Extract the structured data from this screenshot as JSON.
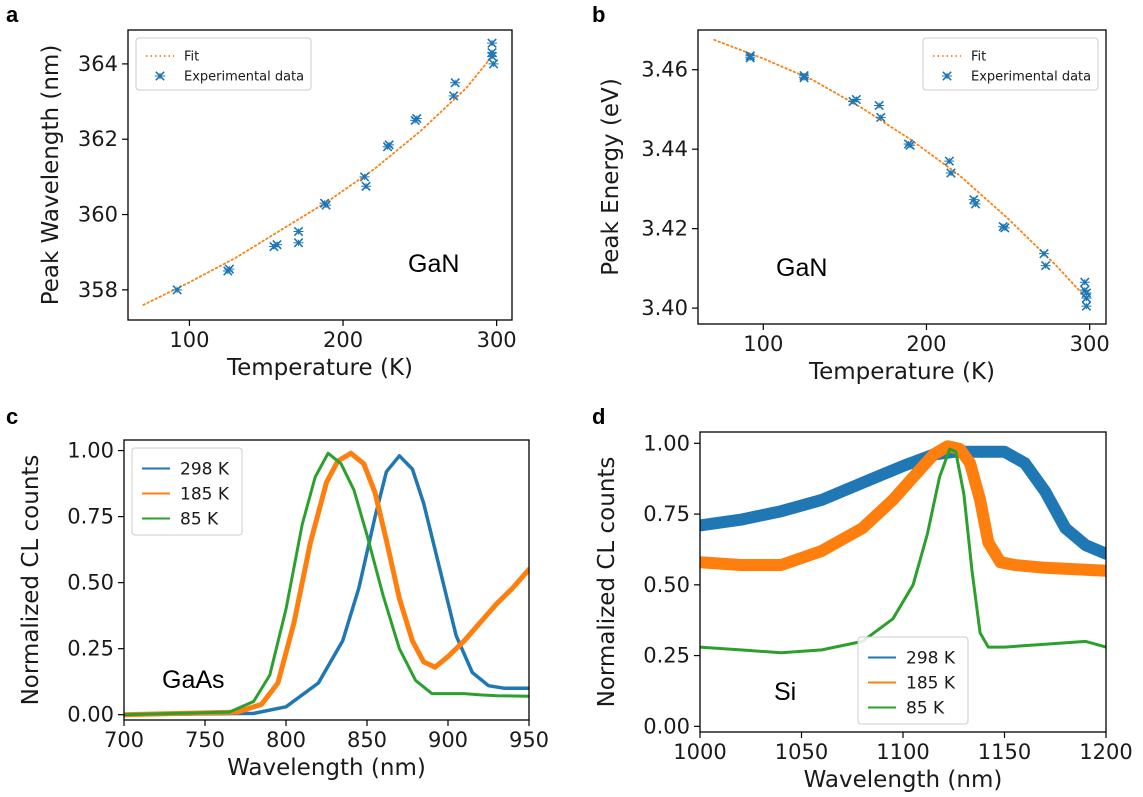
{
  "colors": {
    "blue": "#1f77b4",
    "orange": "#ff7f0e",
    "green": "#2ca02c"
  },
  "chart_data": [
    {
      "panel": "a",
      "type": "scatter",
      "annotation": "GaN",
      "xlabel": "Temperature (K)",
      "ylabel": "Peak Wavelength (nm)",
      "xlim": [
        60,
        310
      ],
      "ylim": [
        357.2,
        364.9
      ],
      "xticks": [
        100,
        200,
        300
      ],
      "yticks": [
        358,
        360,
        362,
        364
      ],
      "legend": {
        "position": "top-left",
        "entries": [
          "Fit",
          "Experimental data"
        ]
      },
      "series": [
        {
          "name": "Fit",
          "style": "dotted-line",
          "color": "orange",
          "x": [
            70,
            100,
            130,
            160,
            190,
            220,
            250,
            280,
            298
          ],
          "y": [
            357.6,
            358.2,
            358.85,
            359.6,
            360.35,
            361.2,
            362.2,
            363.35,
            364.25
          ]
        },
        {
          "name": "Experimental data",
          "style": "errorbar-marker",
          "color": "blue",
          "x": [
            92,
            125,
            126,
            155,
            157,
            171,
            171,
            188,
            189,
            214,
            215,
            229,
            230,
            247,
            248,
            272,
            273,
            297,
            297,
            297,
            298
          ],
          "y": [
            358.0,
            358.5,
            358.55,
            359.15,
            359.2,
            359.55,
            359.25,
            360.3,
            360.25,
            361.0,
            360.75,
            361.8,
            361.85,
            362.5,
            362.55,
            363.15,
            363.5,
            364.55,
            364.3,
            364.2,
            364.0
          ]
        }
      ]
    },
    {
      "panel": "b",
      "type": "scatter",
      "annotation": "GaN",
      "xlabel": "Temperature (K)",
      "ylabel": "Peak Energy (eV)",
      "xlim": [
        60,
        310
      ],
      "ylim": [
        3.396,
        3.47
      ],
      "xticks": [
        100,
        200,
        300
      ],
      "yticks": [
        3.4,
        3.42,
        3.44,
        3.46
      ],
      "ytick_labels": [
        "3.40",
        "3.42",
        "3.44",
        "3.46"
      ],
      "legend": {
        "position": "top-right",
        "entries": [
          "Fit",
          "Experimental data"
        ]
      },
      "series": [
        {
          "name": "Fit",
          "style": "dotted-line",
          "color": "orange",
          "x": [
            70,
            100,
            130,
            160,
            190,
            220,
            250,
            280,
            298
          ],
          "y": [
            3.4675,
            3.4628,
            3.4575,
            3.4505,
            3.4425,
            3.4335,
            3.4225,
            3.4105,
            3.4025
          ]
        },
        {
          "name": "Experimental data",
          "style": "errorbar-marker",
          "color": "blue",
          "x": [
            92,
            92,
            125,
            125,
            155,
            157,
            171,
            172,
            189,
            190,
            214,
            215,
            229,
            230,
            247,
            248,
            272,
            273,
            297,
            297,
            298,
            298,
            298
          ],
          "y": [
            3.463,
            3.4635,
            3.4585,
            3.458,
            3.452,
            3.4525,
            3.451,
            3.448,
            3.4413,
            3.441,
            3.437,
            3.434,
            3.4273,
            3.4262,
            3.4205,
            3.4202,
            3.4137,
            3.4107,
            3.4065,
            3.4045,
            3.4038,
            3.4025,
            3.4005
          ]
        }
      ]
    },
    {
      "panel": "c",
      "type": "line",
      "annotation": "GaAs",
      "xlabel": "Wavelength (nm)",
      "ylabel": "Normalized CL counts",
      "xlim": [
        700,
        950
      ],
      "ylim": [
        -0.02,
        1.04
      ],
      "xticks": [
        700,
        750,
        800,
        850,
        900,
        950
      ],
      "yticks": [
        0.0,
        0.25,
        0.5,
        0.75,
        1.0
      ],
      "ytick_labels": [
        "0.00",
        "0.25",
        "0.50",
        "0.75",
        "1.00"
      ],
      "legend": {
        "position": "top-left",
        "entries": [
          "298 K",
          "185 K",
          "85 K"
        ]
      },
      "series": [
        {
          "name": "298 K",
          "color": "blue",
          "x": [
            700,
            780,
            800,
            820,
            835,
            845,
            855,
            862,
            870,
            878,
            885,
            895,
            905,
            915,
            925,
            935,
            950
          ],
          "y": [
            0.0,
            0.005,
            0.03,
            0.12,
            0.28,
            0.48,
            0.75,
            0.92,
            0.98,
            0.93,
            0.8,
            0.55,
            0.3,
            0.16,
            0.11,
            0.1,
            0.1
          ]
        },
        {
          "name": "185 K",
          "color": "orange",
          "x": [
            700,
            770,
            785,
            795,
            805,
            815,
            825,
            832,
            840,
            848,
            855,
            862,
            870,
            878,
            885,
            892,
            900,
            910,
            920,
            930,
            940,
            950
          ],
          "y": [
            0.0,
            0.01,
            0.04,
            0.12,
            0.35,
            0.65,
            0.88,
            0.96,
            0.99,
            0.95,
            0.84,
            0.66,
            0.44,
            0.28,
            0.2,
            0.18,
            0.22,
            0.28,
            0.35,
            0.42,
            0.48,
            0.55
          ]
        },
        {
          "name": "85 K",
          "color": "green",
          "x": [
            700,
            765,
            780,
            790,
            800,
            810,
            818,
            826,
            834,
            842,
            850,
            860,
            870,
            880,
            890,
            900,
            910,
            920,
            930,
            950
          ],
          "y": [
            0.0,
            0.01,
            0.05,
            0.15,
            0.4,
            0.72,
            0.9,
            0.99,
            0.95,
            0.85,
            0.68,
            0.45,
            0.25,
            0.13,
            0.08,
            0.08,
            0.08,
            0.075,
            0.072,
            0.07
          ]
        }
      ]
    },
    {
      "panel": "d",
      "type": "line",
      "annotation": "Si",
      "xlabel": "Wavelength (nm)",
      "ylabel": "Normalized CL counts",
      "xlim": [
        1000,
        1200
      ],
      "ylim": [
        -0.02,
        1.04
      ],
      "xticks": [
        1000,
        1050,
        1100,
        1150,
        1200
      ],
      "yticks": [
        0.0,
        0.25,
        0.5,
        0.75,
        1.0
      ],
      "ytick_labels": [
        "0.00",
        "0.25",
        "0.50",
        "0.75",
        "1.00"
      ],
      "legend": {
        "position": "bottom-center",
        "entries": [
          "298 K",
          "185 K",
          "85 K"
        ]
      },
      "series": [
        {
          "name": "298 K",
          "color": "blue",
          "x": [
            1000,
            1020,
            1040,
            1060,
            1080,
            1100,
            1115,
            1125,
            1135,
            1150,
            1160,
            1170,
            1180,
            1190,
            1200
          ],
          "y": [
            0.71,
            0.73,
            0.76,
            0.8,
            0.86,
            0.92,
            0.96,
            0.97,
            0.97,
            0.97,
            0.93,
            0.83,
            0.7,
            0.64,
            0.61
          ]
        },
        {
          "name": "185 K",
          "color": "orange",
          "x": [
            1000,
            1020,
            1040,
            1060,
            1080,
            1095,
            1105,
            1115,
            1122,
            1128,
            1133,
            1138,
            1142,
            1148,
            1155,
            1170,
            1200
          ],
          "y": [
            0.58,
            0.57,
            0.57,
            0.62,
            0.7,
            0.8,
            0.88,
            0.96,
            0.99,
            0.98,
            0.93,
            0.8,
            0.65,
            0.58,
            0.57,
            0.56,
            0.55
          ]
        },
        {
          "name": "85 K",
          "color": "green",
          "x": [
            1000,
            1020,
            1040,
            1060,
            1080,
            1095,
            1105,
            1112,
            1118,
            1123,
            1126,
            1130,
            1134,
            1138,
            1142,
            1150,
            1170,
            1190,
            1200
          ],
          "y": [
            0.28,
            0.27,
            0.26,
            0.27,
            0.3,
            0.38,
            0.5,
            0.68,
            0.88,
            0.98,
            0.97,
            0.82,
            0.55,
            0.33,
            0.28,
            0.28,
            0.29,
            0.3,
            0.28
          ]
        }
      ]
    }
  ]
}
